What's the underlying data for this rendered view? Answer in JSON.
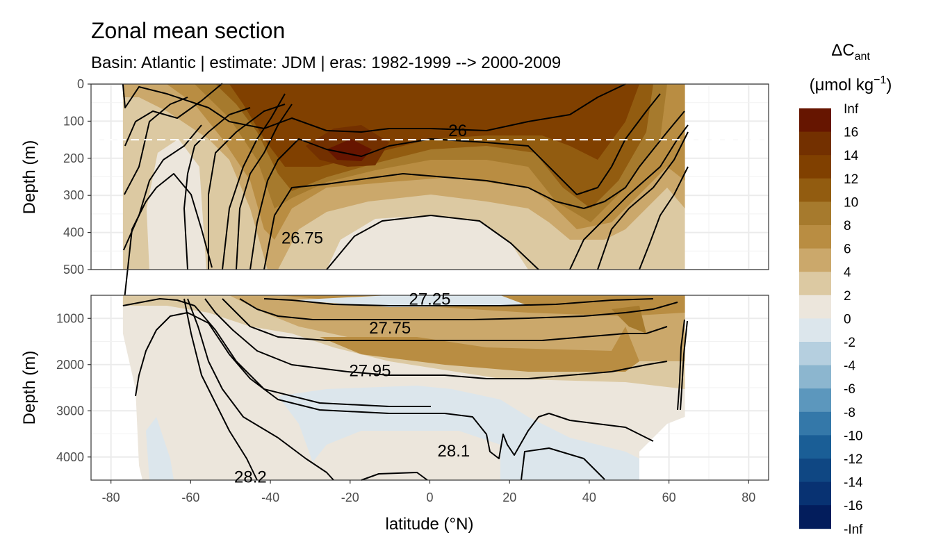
{
  "chart_data": {
    "type": "heatmap",
    "title": "Zonal mean section",
    "subtitle": "Basin: Atlantic | estimate: JDM  | eras: 1982-1999 --> 2000-2009",
    "xlabel": "latitude (°N)",
    "ylabel": "Depth (m)",
    "xlim": [
      -85,
      85
    ],
    "x_ticks": [
      -80,
      -60,
      -40,
      -20,
      0,
      20,
      40,
      60,
      80
    ],
    "panels": [
      {
        "name": "upper",
        "ylim": [
          500,
          0
        ],
        "y_ticks": [
          0,
          100,
          200,
          300,
          400,
          500
        ],
        "reference_depth": 150
      },
      {
        "name": "lower",
        "ylim": [
          4500,
          500
        ],
        "y_ticks": [
          1000,
          2000,
          3000,
          4000
        ]
      }
    ],
    "data_extent": {
      "lat_min": -77,
      "lat_max": 64
    },
    "legend": {
      "title": "ΔC",
      "title_sub": "ant",
      "unit": "(μmol kg",
      "unit_sup": "−1",
      "unit_close": ")",
      "position": "right",
      "breaks": [
        "Inf",
        "16",
        "14",
        "12",
        "10",
        "8",
        "6",
        "4",
        "2",
        "0",
        "-2",
        "-4",
        "-6",
        "-8",
        "-10",
        "-12",
        "-14",
        "-16",
        "-Inf"
      ],
      "colors": [
        "#661500",
        "#733000",
        "#804000",
        "#925c10",
        "#a67a2d",
        "#b98d42",
        "#cba86b",
        "#dcc9a2",
        "#ece6dc",
        "#dce6ec",
        "#b5cfdf",
        "#8cb6cf",
        "#5c97bd",
        "#3478a9",
        "#1a5e96",
        "#0f4783",
        "#083272",
        "#031d5c"
      ]
    },
    "contour_labels": [
      {
        "text": "26",
        "lat": 7,
        "depth": 125
      },
      {
        "text": "26.75",
        "lat": -32,
        "depth": 415
      },
      {
        "text": "27.25",
        "lat": 0,
        "depth": 580
      },
      {
        "text": "27.75",
        "lat": -10,
        "depth": 1210
      },
      {
        "text": "27.95",
        "lat": -15,
        "depth": 2130
      },
      {
        "text": "28.1",
        "lat": 6,
        "depth": 3870
      },
      {
        "text": "28.2",
        "lat": -45,
        "depth": 4430
      }
    ]
  }
}
